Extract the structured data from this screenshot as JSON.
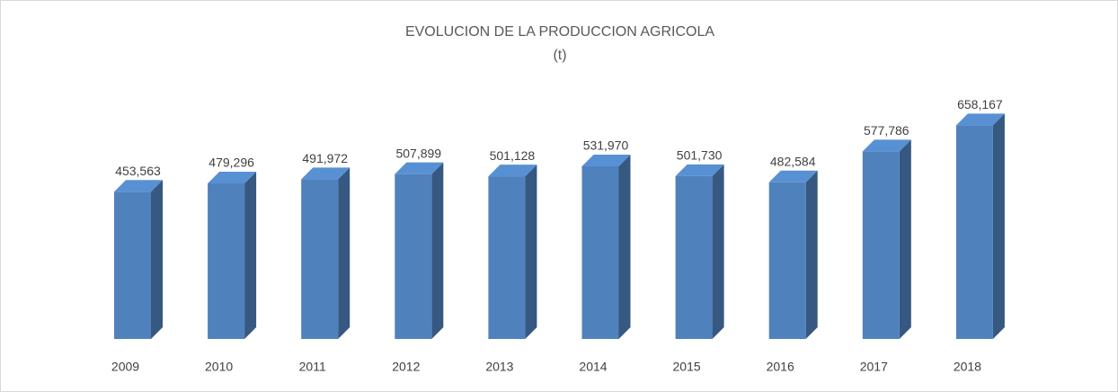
{
  "chart_data": {
    "type": "bar3d",
    "title": "EVOLUCION DE LA PRODUCCION AGRICOLA",
    "subtitle": "(t)",
    "categories": [
      "2009",
      "2010",
      "2011",
      "2012",
      "2013",
      "2014",
      "2015",
      "2016",
      "2017",
      "2018"
    ],
    "values": [
      453563,
      479296,
      491972,
      507899,
      501128,
      531970,
      501730,
      482584,
      577786,
      658167
    ],
    "value_labels": [
      "453,563",
      "479,296",
      "491,972",
      "507,899",
      "501,128",
      "531,970",
      "501,730",
      "482,584",
      "577,786",
      "658,167"
    ],
    "color": "#4f81bd",
    "ylim": [
      0,
      1000000
    ]
  }
}
